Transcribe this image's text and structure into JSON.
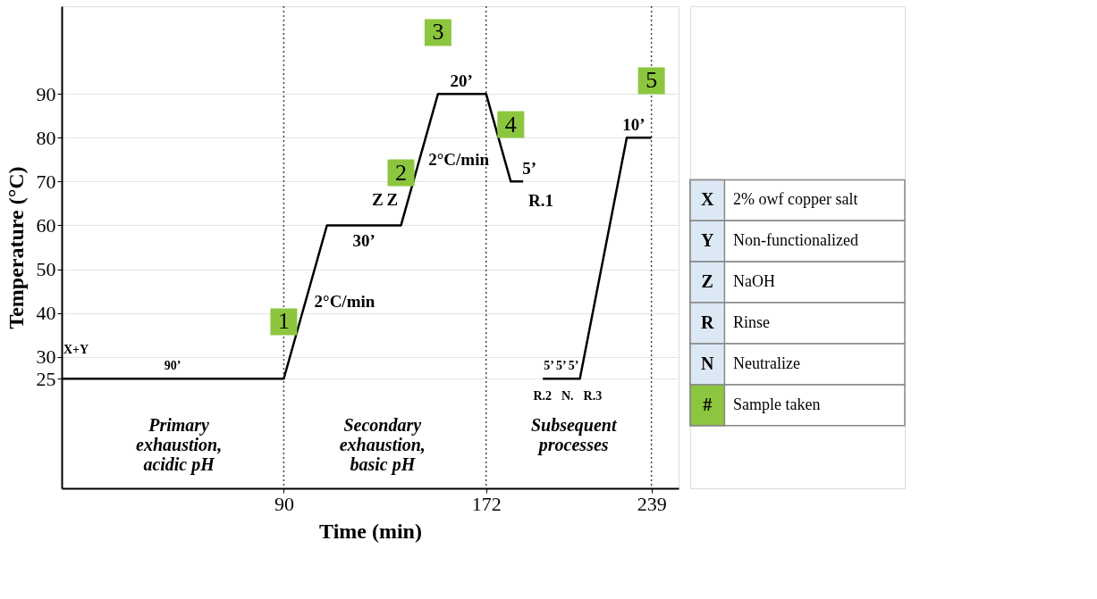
{
  "chart_data": {
    "type": "line",
    "xlabel": "Time (min)",
    "ylabel": "Temperature (°C)",
    "xlim": [
      0,
      250
    ],
    "xticks": [
      90,
      172,
      239
    ],
    "ylim": [
      0,
      110
    ],
    "yticks": [
      25,
      30,
      40,
      50,
      60,
      70,
      80,
      90
    ],
    "grid": "y",
    "legend": "right",
    "line_style": "solid",
    "series": [
      {
        "color": "#000000",
        "x": [
          0,
          90,
          107.5,
          137.5,
          152.5,
          172,
          182,
          187,
          191,
          195,
          210,
          229,
          239
        ],
        "values": [
          25,
          25,
          60,
          60,
          90,
          90,
          70,
          70,
          null,
          25,
          25,
          80,
          80
        ]
      },
      {
        "type": "scatter",
        "name": "Sample taken",
        "color": "#8cc63f",
        "marker": "square",
        "x": [
          90,
          137.5,
          152.5,
          182,
          239
        ],
        "values": [
          38,
          72,
          104,
          83,
          93
        ]
      }
    ],
    "ref_lines": [
      {
        "axis": "x",
        "value": 90,
        "color": "#444444",
        "line_style": "dotted"
      },
      {
        "axis": "x",
        "value": 172,
        "color": "#444444",
        "line_style": "dotted"
      },
      {
        "axis": "x",
        "value": 239,
        "color": "#444444",
        "line_style": "dotted"
      }
    ],
    "annotations": [
      {
        "text": "X+Y",
        "x": 0,
        "y": 25
      },
      {
        "text": "90’",
        "x": 45,
        "y": 25
      },
      {
        "text": "2°C/min",
        "x": 98.75,
        "y": 42.5
      },
      {
        "text": "Z",
        "x": 128,
        "y": 60
      },
      {
        "text": "Z",
        "x": 134,
        "y": 60
      },
      {
        "text": "30’",
        "x": 122.5,
        "y": 60
      },
      {
        "text": "2°C/min",
        "x": 145,
        "y": 75
      },
      {
        "text": "20’",
        "x": 162,
        "y": 90
      },
      {
        "text": "5’",
        "x": 184.5,
        "y": 70
      },
      {
        "text": "R.1",
        "x": 187,
        "y": 70
      },
      {
        "text": "5’",
        "x": 197.5,
        "y": 25
      },
      {
        "text": "5’",
        "x": 202.5,
        "y": 25
      },
      {
        "text": "5’",
        "x": 207.5,
        "y": 25
      },
      {
        "text": "R.2",
        "x": 200,
        "y": 25
      },
      {
        "text": "N.",
        "x": 205,
        "y": 25
      },
      {
        "text": "R.3",
        "x": 210,
        "y": 25
      },
      {
        "text": "10’",
        "x": 234,
        "y": 80
      },
      "Primary\nexhaustion,\nacidic pH",
      "Secondary\nexhaustion,\nbasic pH",
      "Subsequent\nprocesses",
      "1",
      "2",
      "3",
      "4",
      "5",
      "X",
      "2% owf copper salt",
      "Y",
      "Non-functionalized",
      "Z",
      "NaOH",
      "R",
      "Rinse",
      "N",
      "Neutralize",
      "#"
    ]
  }
}
